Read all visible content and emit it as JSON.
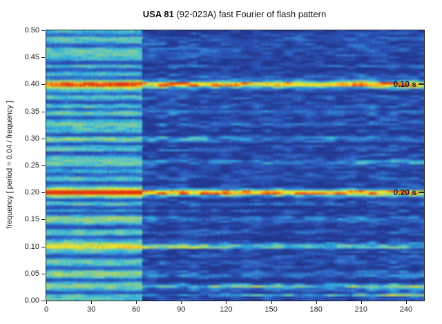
{
  "title": {
    "bold": "USA 81",
    "rest": " (92-023A) fast Fourier of flash pattern"
  },
  "chart_data": {
    "type": "heatmap",
    "title": "USA 81 (92-023A) fast Fourier of flash pattern",
    "xlabel": "",
    "ylabel": "frequency [ period = 0.04 / frequency ]",
    "xlim": [
      0,
      252
    ],
    "ylim": [
      0,
      0.5
    ],
    "xticks": [
      "0",
      "30",
      "60",
      "90",
      "120",
      "150",
      "180",
      "210",
      "240"
    ],
    "yticks": [
      "0.50",
      "0.45",
      "0.40",
      "0.35",
      "0.30",
      "0.25",
      "0.20",
      "0.15",
      "0.10",
      "0.05",
      "0.00"
    ],
    "grid": false,
    "annotations": [
      {
        "text": "0.10 s",
        "freq": 0.4,
        "period_s": 0.1
      },
      {
        "text": "0.20 s",
        "freq": 0.2,
        "period_s": 0.2
      }
    ],
    "colormap": [
      [
        0.0,
        "#23388f"
      ],
      [
        0.18,
        "#2a52b5"
      ],
      [
        0.32,
        "#3376cd"
      ],
      [
        0.45,
        "#2fa8dc"
      ],
      [
        0.55,
        "#5ec6c3"
      ],
      [
        0.65,
        "#93cf85"
      ],
      [
        0.74,
        "#c4da4e"
      ],
      [
        0.82,
        "#eee52f"
      ],
      [
        0.9,
        "#f5a41f"
      ],
      [
        1.0,
        "#e33d12"
      ]
    ],
    "segments": [
      {
        "x0": 0,
        "x1": 64,
        "background": 0.54,
        "noise": 0.1
      },
      {
        "x0": 64,
        "x1": 108,
        "background": 0.14,
        "noise": 0.26
      },
      {
        "x0": 108,
        "x1": 204,
        "background": 0.13,
        "noise": 0.22
      },
      {
        "x0": 204,
        "x1": 252,
        "background": 0.15,
        "noise": 0.24
      }
    ],
    "noise": {
      "seed": 7,
      "block": 7,
      "jitter": 0.04
    },
    "bands": [
      {
        "f": 0.4,
        "w": 0.006,
        "amp": [
          0.44,
          0.74,
          0.7,
          0.76
        ]
      },
      {
        "f": 0.455,
        "w": 0.004,
        "amp": [
          0.05,
          0.16,
          0.1,
          0.07
        ]
      },
      {
        "f": 0.35,
        "w": 0.004,
        "amp": [
          0.05,
          0.1,
          0.08,
          0.05
        ]
      },
      {
        "f": 0.3,
        "w": 0.0042,
        "amp": [
          0.1,
          0.2,
          0.15,
          0.09
        ]
      },
      {
        "f": 0.255,
        "w": 0.0045,
        "amp": [
          0.08,
          0.26,
          0.28,
          0.36
        ]
      },
      {
        "f": 0.2,
        "w": 0.006,
        "amp": [
          0.58,
          0.8,
          0.82,
          0.74
        ]
      },
      {
        "f": 0.15,
        "w": 0.004,
        "amp": [
          0.1,
          0.18,
          0.14,
          0.12
        ]
      },
      {
        "f": 0.125,
        "w": 0.0038,
        "amp": [
          0.07,
          0.12,
          0.09,
          0.08
        ]
      },
      {
        "f": 0.1,
        "w": 0.005,
        "amp": [
          0.26,
          0.52,
          0.4,
          0.3
        ]
      },
      {
        "f": 0.075,
        "w": 0.0038,
        "amp": [
          0.05,
          0.12,
          0.1,
          0.12
        ]
      },
      {
        "f": 0.05,
        "w": 0.004,
        "amp": [
          0.1,
          0.14,
          0.12,
          0.2
        ]
      },
      {
        "f": 0.025,
        "w": 0.0045,
        "amp": [
          0.05,
          0.26,
          0.4,
          0.48
        ]
      },
      {
        "f": 0.01,
        "w": 0.004,
        "amp": [
          0.03,
          0.14,
          0.28,
          0.44
        ]
      },
      {
        "f": 0.491,
        "w": 0.0035,
        "amp": [
          -0.3,
          -0.06,
          -0.06,
          -0.06
        ]
      },
      {
        "f": 0.472,
        "w": 0.004,
        "amp": [
          -0.42,
          -0.08,
          -0.07,
          -0.08
        ]
      },
      {
        "f": 0.44,
        "w": 0.004,
        "amp": [
          -0.42,
          -0.08,
          -0.07,
          -0.08
        ]
      },
      {
        "f": 0.427,
        "w": 0.0035,
        "amp": [
          -0.35,
          -0.06,
          -0.06,
          -0.06
        ]
      },
      {
        "f": 0.412,
        "w": 0.0038,
        "amp": [
          -0.38,
          -0.07,
          -0.07,
          -0.07
        ]
      },
      {
        "f": 0.383,
        "w": 0.0032,
        "amp": [
          -0.3,
          -0.05,
          -0.05,
          -0.05
        ]
      },
      {
        "f": 0.367,
        "w": 0.004,
        "amp": [
          -0.42,
          -0.08,
          -0.08,
          -0.08
        ]
      },
      {
        "f": 0.353,
        "w": 0.0035,
        "amp": [
          -0.35,
          -0.06,
          -0.06,
          -0.06
        ]
      },
      {
        "f": 0.338,
        "w": 0.0038,
        "amp": [
          -0.38,
          -0.07,
          -0.07,
          -0.07
        ]
      },
      {
        "f": 0.306,
        "w": 0.004,
        "amp": [
          -0.4,
          -0.08,
          -0.07,
          -0.08
        ]
      },
      {
        "f": 0.29,
        "w": 0.0038,
        "amp": [
          -0.38,
          -0.07,
          -0.07,
          -0.07
        ]
      },
      {
        "f": 0.272,
        "w": 0.004,
        "amp": [
          -0.42,
          -0.08,
          -0.08,
          -0.08
        ]
      },
      {
        "f": 0.245,
        "w": 0.0032,
        "amp": [
          -0.3,
          -0.06,
          -0.06,
          -0.06
        ]
      },
      {
        "f": 0.233,
        "w": 0.0038,
        "amp": [
          -0.38,
          -0.07,
          -0.07,
          -0.07
        ]
      },
      {
        "f": 0.217,
        "w": 0.0038,
        "amp": [
          -0.4,
          -0.08,
          -0.07,
          -0.08
        ]
      },
      {
        "f": 0.186,
        "w": 0.0036,
        "amp": [
          -0.35,
          -0.07,
          -0.07,
          -0.07
        ]
      },
      {
        "f": 0.172,
        "w": 0.0038,
        "amp": [
          -0.38,
          -0.07,
          -0.07,
          -0.07
        ]
      },
      {
        "f": 0.162,
        "w": 0.0038,
        "amp": [
          -0.4,
          -0.08,
          -0.08,
          -0.08
        ]
      },
      {
        "f": 0.136,
        "w": 0.0042,
        "amp": [
          -0.44,
          -0.08,
          -0.08,
          -0.08
        ]
      },
      {
        "f": 0.117,
        "w": 0.0034,
        "amp": [
          -0.34,
          -0.06,
          -0.06,
          -0.06
        ]
      },
      {
        "f": 0.082,
        "w": 0.0042,
        "amp": [
          -0.44,
          -0.08,
          -0.08,
          -0.08
        ]
      },
      {
        "f": 0.06,
        "w": 0.0036,
        "amp": [
          -0.36,
          -0.07,
          -0.07,
          -0.07
        ]
      },
      {
        "f": 0.038,
        "w": 0.0034,
        "amp": [
          -0.34,
          -0.06,
          -0.06,
          -0.06
        ]
      },
      {
        "f": 0.015,
        "w": 0.0038,
        "amp": [
          -0.4,
          -0.08,
          -0.08,
          -0.08
        ]
      }
    ]
  }
}
